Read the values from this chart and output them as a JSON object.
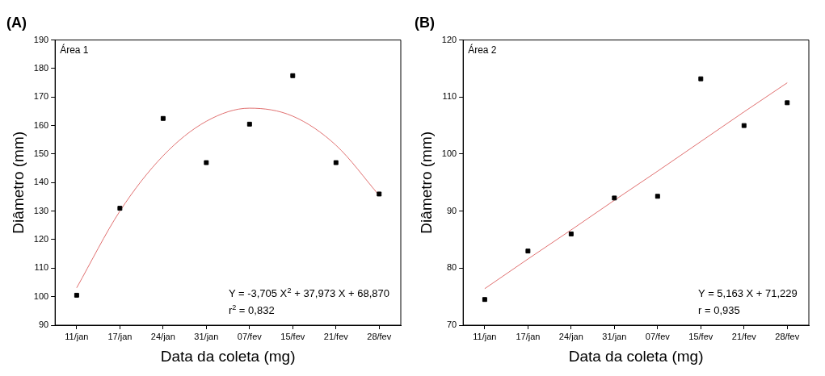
{
  "chart_data": [
    {
      "type": "scatter",
      "title": "(A)",
      "xlabel": "Data da coleta (mg)",
      "ylabel": "Diâmetro (mm)",
      "ylim": [
        90,
        190
      ],
      "categories": [
        "11/jan",
        "17/jan",
        "24/jan",
        "31/jan",
        "07/fev",
        "15/fev",
        "21/fev",
        "28/fev"
      ],
      "yticks": [
        90,
        100,
        110,
        120,
        130,
        140,
        150,
        160,
        170,
        180,
        190
      ],
      "grid": false,
      "legend": false,
      "marker": "square",
      "series": [
        {
          "type": "scatter",
          "color": "#000000",
          "values": [
            100.5,
            131,
            162.5,
            147,
            160.5,
            177.5,
            147,
            136
          ]
        },
        {
          "type": "line",
          "color": "#e07070",
          "marker": "none",
          "line_style": "solid",
          "values": [
            103.1,
            130,
            149.4,
            161.5,
            166.1,
            163.3,
            153.1,
            135.5
          ]
        }
      ],
      "annotations": [
        "Área 1",
        "Y = -3,705 X$^{2}$ + 37,973 X + 68,870",
        "r$^{2}$ = 0,832"
      ]
    },
    {
      "type": "scatter",
      "title": "(B)",
      "xlabel": "Data da coleta (mg)",
      "ylabel": "Diâmetro (mm)",
      "ylim": [
        70,
        120
      ],
      "categories": [
        "11/jan",
        "17/jan",
        "24/jan",
        "31/jan",
        "07/fev",
        "15/fev",
        "21/fev",
        "28/fev"
      ],
      "yticks": [
        70,
        80,
        90,
        100,
        110,
        120
      ],
      "grid": false,
      "legend": false,
      "marker": "square",
      "series": [
        {
          "type": "scatter",
          "color": "#000000",
          "values": [
            74.5,
            83,
            86,
            92.3,
            92.6,
            113.2,
            105,
            109
          ]
        },
        {
          "type": "line",
          "color": "#e07070",
          "marker": "none",
          "line_style": "solid",
          "values": [
            76.4,
            81.6,
            86.7,
            91.9,
            97,
            102.2,
            107.4,
            112.5
          ]
        }
      ],
      "annotations": [
        "Área 2",
        "Y = 5,163 X + 71,229",
        "r = 0,935"
      ]
    }
  ]
}
